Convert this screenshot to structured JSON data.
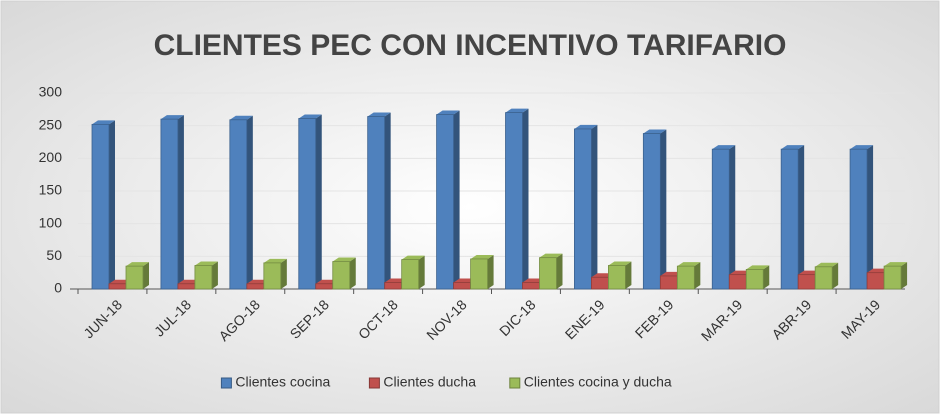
{
  "chart_data": {
    "type": "bar",
    "title": "CLIENTES PEC CON INCENTIVO TARIFARIO",
    "categories": [
      "JUN-18",
      "JUL-18",
      "AGO-18",
      "SEP-18",
      "OCT-18",
      "NOV-18",
      "DIC-18",
      "ENE-19",
      "FEB-19",
      "MAR-19",
      "ABR-19",
      "MAY-19"
    ],
    "series": [
      {
        "name": "Clientes cocina",
        "color": "#4f81bd",
        "values": [
          252,
          260,
          259,
          261,
          264,
          267,
          270,
          245,
          238,
          214,
          214,
          214
        ]
      },
      {
        "name": "Clientes ducha",
        "color": "#c0504d",
        "values": [
          8,
          8,
          8,
          8,
          10,
          10,
          10,
          18,
          20,
          22,
          22,
          25
        ]
      },
      {
        "name": "Clientes cocina y ducha",
        "color": "#9bbb59",
        "values": [
          35,
          36,
          40,
          42,
          45,
          46,
          48,
          36,
          35,
          30,
          34,
          35
        ]
      }
    ],
    "ylim": [
      0,
      300
    ],
    "yticks": [
      0,
      50,
      100,
      150,
      200,
      250,
      300
    ],
    "legend": "bottom"
  }
}
